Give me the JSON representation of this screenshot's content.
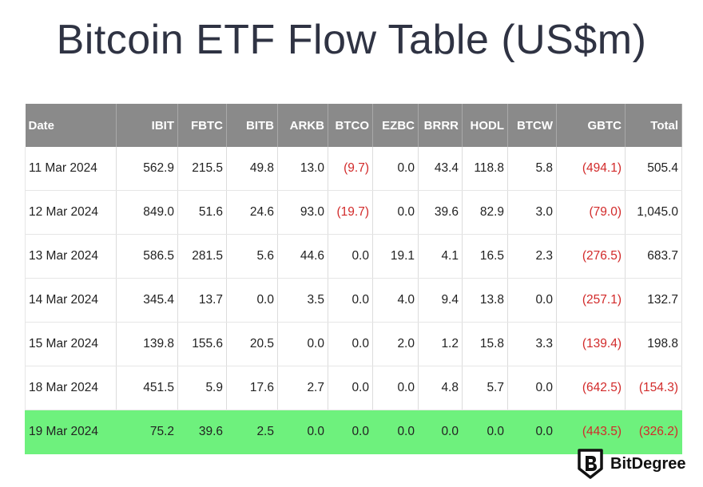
{
  "chart_data": {
    "type": "table",
    "title": "Bitcoin ETF Flow Table (US$m)",
    "columns": [
      "Date",
      "IBIT",
      "FBTC",
      "BITB",
      "ARKB",
      "BTCO",
      "EZBC",
      "BRRR",
      "HODL",
      "BTCW",
      "GBTC",
      "Total"
    ],
    "rows": [
      {
        "cells": [
          "11 Mar 2024",
          "562.9",
          "215.5",
          "49.8",
          "13.0",
          "(9.7)",
          "0.0",
          "43.4",
          "118.8",
          "5.8",
          "(494.1)",
          "505.4"
        ],
        "highlight": false
      },
      {
        "cells": [
          "12 Mar 2024",
          "849.0",
          "51.6",
          "24.6",
          "93.0",
          "(19.7)",
          "0.0",
          "39.6",
          "82.9",
          "3.0",
          "(79.0)",
          "1,045.0"
        ],
        "highlight": false
      },
      {
        "cells": [
          "13 Mar 2024",
          "586.5",
          "281.5",
          "5.6",
          "44.6",
          "0.0",
          "19.1",
          "4.1",
          "16.5",
          "2.3",
          "(276.5)",
          "683.7"
        ],
        "highlight": false
      },
      {
        "cells": [
          "14 Mar 2024",
          "345.4",
          "13.7",
          "0.0",
          "3.5",
          "0.0",
          "4.0",
          "9.4",
          "13.8",
          "0.0",
          "(257.1)",
          "132.7"
        ],
        "highlight": false
      },
      {
        "cells": [
          "15 Mar 2024",
          "139.8",
          "155.6",
          "20.5",
          "0.0",
          "0.0",
          "2.0",
          "1.2",
          "15.8",
          "3.3",
          "(139.4)",
          "198.8"
        ],
        "highlight": false
      },
      {
        "cells": [
          "18 Mar 2024",
          "451.5",
          "5.9",
          "17.6",
          "2.7",
          "0.0",
          "0.0",
          "4.8",
          "5.7",
          "0.0",
          "(642.5)",
          "(154.3)"
        ],
        "highlight": false
      },
      {
        "cells": [
          "19 Mar 2024",
          "75.2",
          "39.6",
          "2.5",
          "0.0",
          "0.0",
          "0.0",
          "0.0",
          "0.0",
          "0.0",
          "(443.5)",
          "(326.2)"
        ],
        "highlight": true
      }
    ]
  },
  "watermark": {
    "brand": "BitDegree"
  },
  "colors": {
    "header_bg": "#8a8a8a",
    "negative": "#d22a2a",
    "highlight_row": "#6ef17d",
    "title": "#2f3343"
  }
}
